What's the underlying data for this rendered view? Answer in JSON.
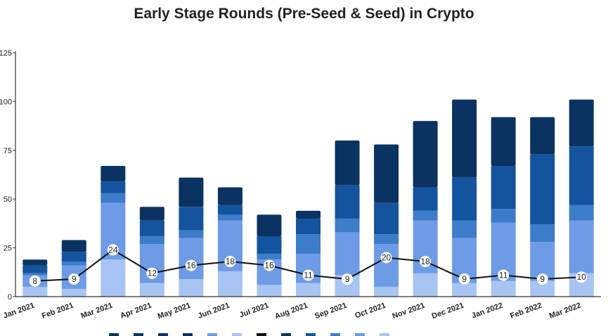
{
  "chart_data": {
    "type": "bar",
    "title": "Early Stage Rounds (Pre-Seed & Seed) in Crypto",
    "xlabel": "",
    "ylabel": "",
    "ylim": [
      0,
      125
    ],
    "yticks": [
      0,
      25,
      50,
      75,
      100,
      125
    ],
    "stacked": true,
    "categories": [
      "Jan 2021",
      "Feb 2021",
      "Mar 2021",
      "Apr 2021",
      "May 2021",
      "Jun 2021",
      "Jul 2021",
      "Aug 2021",
      "Sep 2021",
      "Oct 2021",
      "Nov 2021",
      "Dec 2021",
      "Jan 2022",
      "Feb 2022",
      "Mar 2022"
    ],
    "series": [
      {
        "color": "#a7c4f2",
        "values": [
          5,
          4,
          19,
          7,
          9,
          13,
          6,
          7,
          11,
          5,
          12,
          7,
          8,
          8,
          12
        ]
      },
      {
        "color": "#6d9be6",
        "values": [
          6,
          12,
          29,
          20,
          21,
          26,
          13,
          15,
          22,
          22,
          27,
          23,
          30,
          20,
          27
        ]
      },
      {
        "color": "#3d7cc9",
        "values": [
          1,
          2,
          5,
          4,
          4,
          3,
          3,
          10,
          7,
          5,
          5,
          9,
          7,
          9,
          8
        ]
      },
      {
        "color": "#14539e",
        "values": [
          4,
          5,
          6,
          8,
          12,
          5,
          9,
          8,
          17,
          16,
          12,
          22,
          22,
          36,
          30
        ]
      },
      {
        "color": "#0b3361",
        "values": [
          3,
          6,
          8,
          7,
          15,
          9,
          11,
          4,
          23,
          30,
          34,
          40,
          25,
          19,
          24
        ]
      }
    ],
    "line": {
      "color": "#111111",
      "values": [
        8,
        9,
        24,
        12,
        16,
        18,
        16,
        11,
        9,
        20,
        18,
        9,
        11,
        9,
        10
      ]
    },
    "legend": "bottom"
  }
}
